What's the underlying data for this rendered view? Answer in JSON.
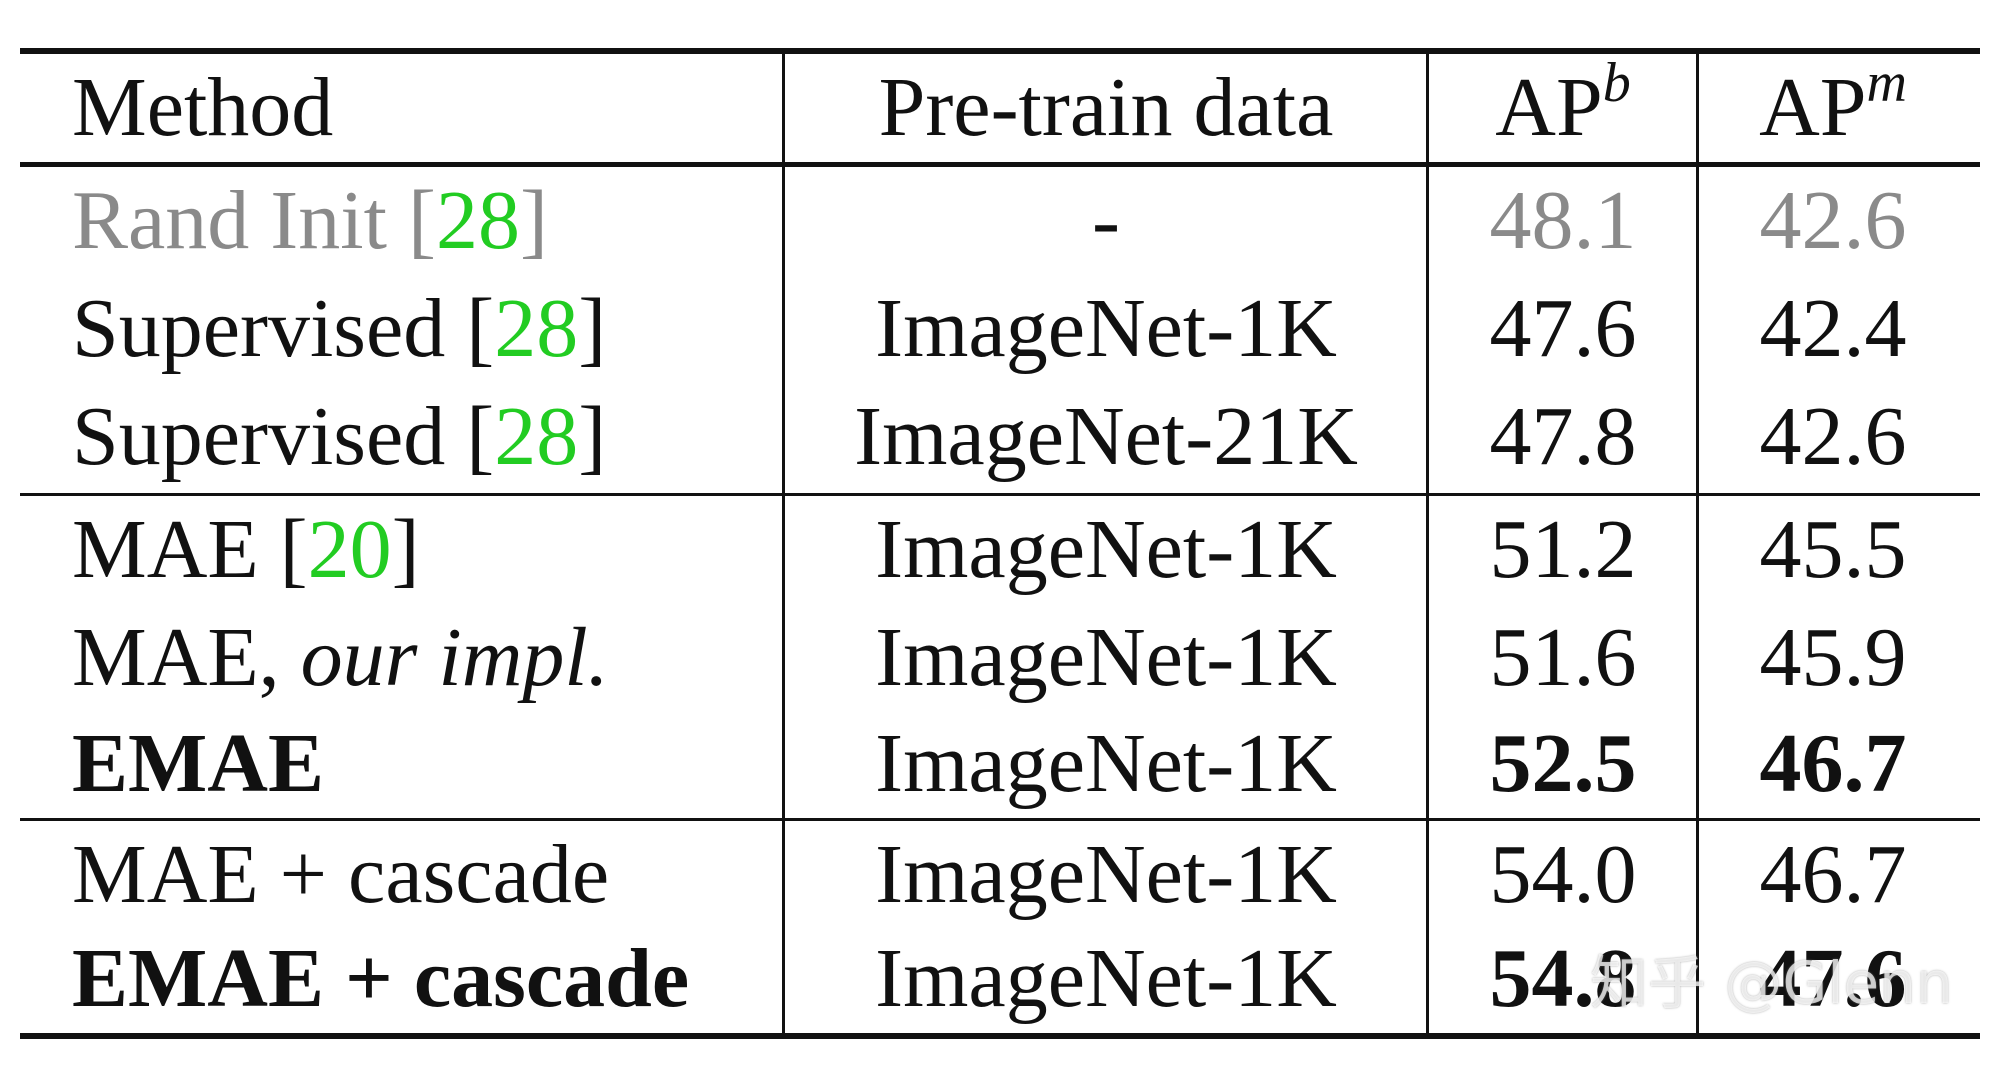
{
  "table": {
    "headers": {
      "method": "Method",
      "data": "Pre-train data",
      "apb_base": "AP",
      "apb_sup": "b",
      "apm_base": "AP",
      "apm_sup": "m"
    },
    "rows": [
      {
        "method": "Rand Init",
        "cite": "28",
        "data": "-",
        "apb": "48.1",
        "apm": "42.6"
      },
      {
        "method": "Supervised",
        "cite": "28",
        "data": "ImageNet-1K",
        "apb": "47.6",
        "apm": "42.4"
      },
      {
        "method": "Supervised",
        "cite": "28",
        "data": "ImageNet-21K",
        "apb": "47.8",
        "apm": "42.6"
      },
      {
        "method": "MAE",
        "cite": "20",
        "data": "ImageNet-1K",
        "apb": "51.2",
        "apm": "45.5"
      },
      {
        "method": "MAE,",
        "method_ital": "our impl.",
        "data": "ImageNet-1K",
        "apb": "51.6",
        "apm": "45.9"
      },
      {
        "method": "EMAE",
        "data": "ImageNet-1K",
        "apb": "52.5",
        "apm": "46.7"
      },
      {
        "method": "MAE + cascade",
        "data": "ImageNet-1K",
        "apb": "54.0",
        "apm": "46.7"
      },
      {
        "method": "EMAE + cascade",
        "data": "ImageNet-1K",
        "apb": "54.8",
        "apm": "47.6"
      }
    ]
  },
  "watermark": "知乎 @Glenn"
}
